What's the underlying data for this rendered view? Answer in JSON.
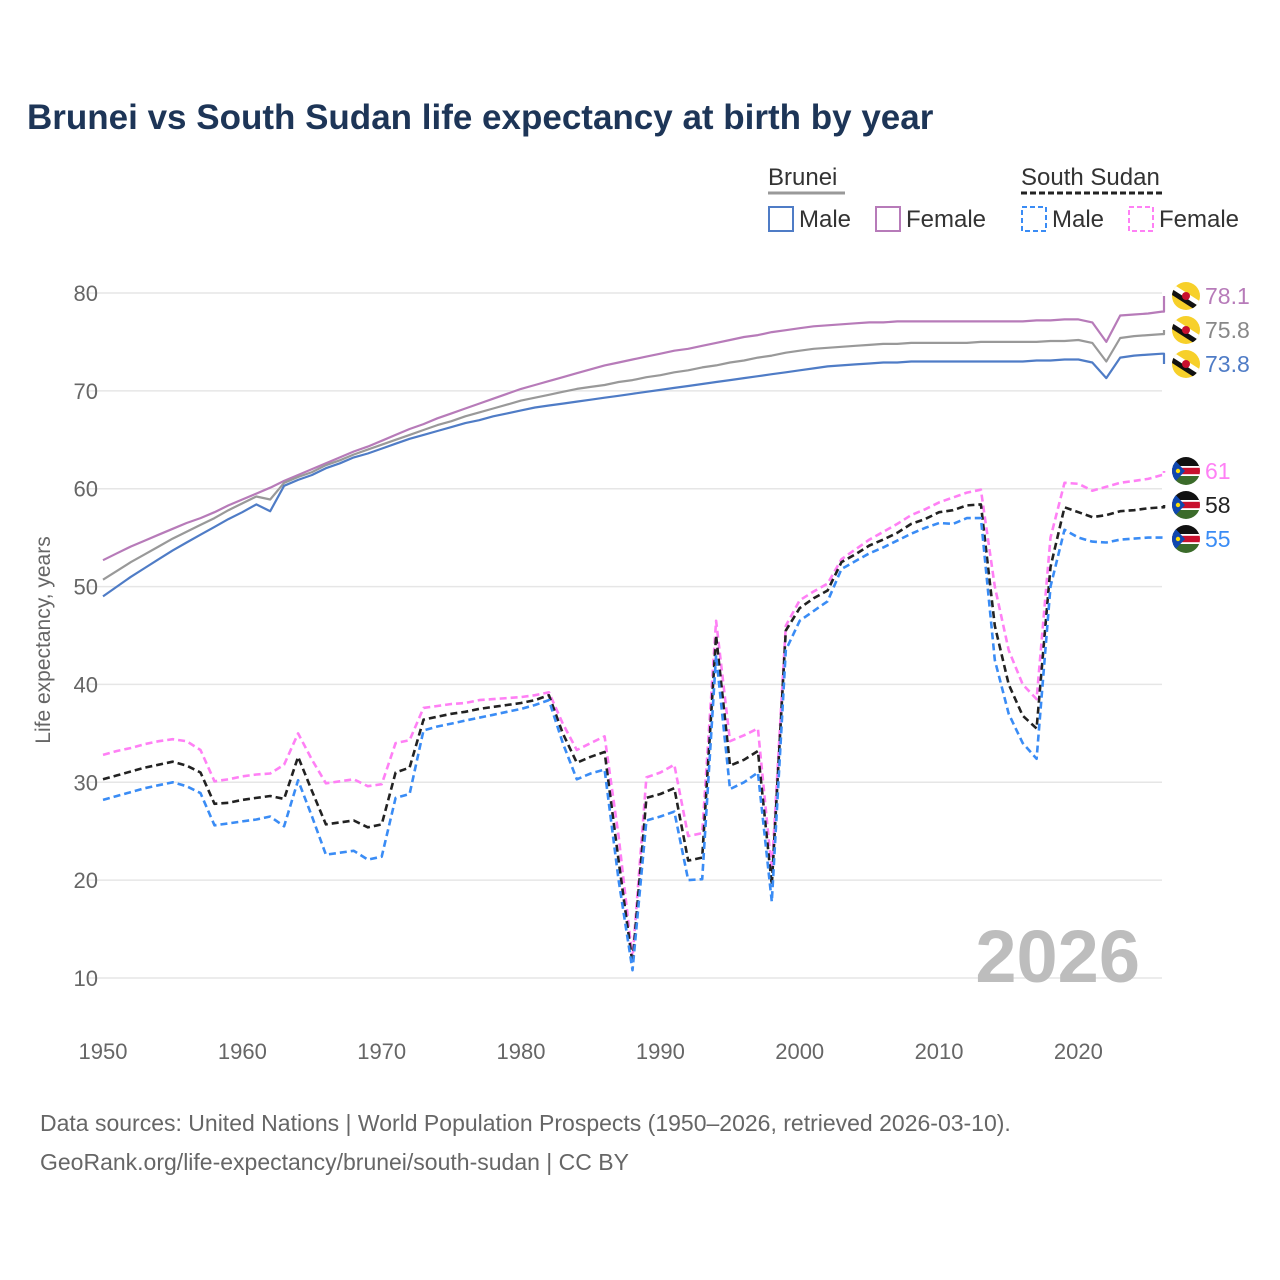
{
  "title": "Brunei vs South Sudan life expectancy at birth by year",
  "year_watermark": "2026",
  "legend": {
    "groups": [
      {
        "label": "Brunei",
        "items": [
          "Male",
          "Female"
        ]
      },
      {
        "label": "South Sudan",
        "items": [
          "Male",
          "Female"
        ]
      }
    ]
  },
  "footer": {
    "line1": "Data sources: United Nations | World Population Prospects (1950–2026, retrieved 2026-03-10).",
    "line2": "GeoRank.org/life-expectancy/brunei/south-sudan | CC BY"
  },
  "chart_data": {
    "type": "line",
    "title": "Brunei vs South Sudan life expectancy at birth by year",
    "xlabel": "",
    "ylabel": "Life expectancy, years",
    "xlim": [
      1950,
      2026
    ],
    "ylim": [
      10,
      80
    ],
    "x_start": 1950,
    "x_ticks": [
      "1950",
      "1960",
      "1970",
      "1980",
      "1990",
      "2000",
      "2010",
      "2020"
    ],
    "y_ticks": [
      "10",
      "20",
      "30",
      "40",
      "50",
      "60",
      "70",
      "80"
    ],
    "grid": true,
    "legend_position": "top-right",
    "series": [
      {
        "name": "Brunei Female",
        "country": "Brunei",
        "color": "#b77bb9",
        "dashed": false,
        "end_label": "78.1",
        "values": [
          52.7,
          53.4,
          54.1,
          54.7,
          55.3,
          55.9,
          56.5,
          57.0,
          57.6,
          58.3,
          58.9,
          59.5,
          60.1,
          60.8,
          61.4,
          62.0,
          62.6,
          63.2,
          63.8,
          64.3,
          64.9,
          65.5,
          66.1,
          66.6,
          67.2,
          67.7,
          68.2,
          68.7,
          69.2,
          69.7,
          70.2,
          70.6,
          71.0,
          71.4,
          71.8,
          72.2,
          72.6,
          72.9,
          73.2,
          73.5,
          73.8,
          74.1,
          74.3,
          74.6,
          74.9,
          75.2,
          75.5,
          75.7,
          76.0,
          76.2,
          76.4,
          76.6,
          76.7,
          76.8,
          76.9,
          77.0,
          77.0,
          77.1,
          77.1,
          77.1,
          77.1,
          77.1,
          77.1,
          77.1,
          77.1,
          77.1,
          77.1,
          77.2,
          77.2,
          77.3,
          77.3,
          77.0,
          75.0,
          77.7,
          77.8,
          77.9,
          78.1
        ]
      },
      {
        "name": "Brunei Total",
        "country": "Brunei",
        "color": "#999999",
        "dashed": false,
        "end_label": "75.8",
        "values": [
          50.7,
          51.6,
          52.5,
          53.3,
          54.1,
          54.9,
          55.6,
          56.3,
          57.0,
          57.8,
          58.5,
          59.2,
          58.9,
          60.6,
          61.2,
          61.7,
          62.4,
          62.9,
          63.5,
          64.0,
          64.5,
          65.0,
          65.5,
          66.0,
          66.5,
          66.9,
          67.4,
          67.8,
          68.2,
          68.6,
          69.0,
          69.3,
          69.6,
          69.9,
          70.2,
          70.4,
          70.6,
          70.9,
          71.1,
          71.4,
          71.6,
          71.9,
          72.1,
          72.4,
          72.6,
          72.9,
          73.1,
          73.4,
          73.6,
          73.9,
          74.1,
          74.3,
          74.4,
          74.5,
          74.6,
          74.7,
          74.8,
          74.8,
          74.9,
          74.9,
          74.9,
          74.9,
          74.9,
          75.0,
          75.0,
          75.0,
          75.0,
          75.0,
          75.1,
          75.1,
          75.2,
          74.9,
          73.0,
          75.4,
          75.6,
          75.7,
          75.8
        ]
      },
      {
        "name": "Brunei Male",
        "country": "Brunei",
        "color": "#4f7cc6",
        "dashed": false,
        "end_label": "73.8",
        "values": [
          49.0,
          50.0,
          51.0,
          51.9,
          52.8,
          53.7,
          54.5,
          55.3,
          56.1,
          56.9,
          57.6,
          58.4,
          57.7,
          60.3,
          60.9,
          61.4,
          62.1,
          62.6,
          63.2,
          63.6,
          64.1,
          64.6,
          65.1,
          65.5,
          65.9,
          66.3,
          66.7,
          67.0,
          67.4,
          67.7,
          68.0,
          68.3,
          68.5,
          68.7,
          68.9,
          69.1,
          69.3,
          69.5,
          69.7,
          69.9,
          70.1,
          70.3,
          70.5,
          70.7,
          70.9,
          71.1,
          71.3,
          71.5,
          71.7,
          71.9,
          72.1,
          72.3,
          72.5,
          72.6,
          72.7,
          72.8,
          72.9,
          72.9,
          73.0,
          73.0,
          73.0,
          73.0,
          73.0,
          73.0,
          73.0,
          73.0,
          73.0,
          73.1,
          73.1,
          73.2,
          73.2,
          72.9,
          71.3,
          73.4,
          73.6,
          73.7,
          73.8
        ]
      },
      {
        "name": "South Sudan Female",
        "country": "South Sudan",
        "color": "#ff80f5",
        "dashed": true,
        "end_label": "61",
        "values": [
          32.8,
          33.2,
          33.5,
          33.9,
          34.2,
          34.4,
          34.2,
          33.3,
          30.1,
          30.3,
          30.6,
          30.8,
          30.9,
          31.8,
          35.0,
          32.3,
          29.9,
          30.1,
          30.3,
          29.6,
          29.8,
          34.0,
          34.3,
          37.6,
          37.8,
          38.0,
          38.1,
          38.4,
          38.5,
          38.6,
          38.7,
          38.9,
          39.2,
          36.0,
          33.3,
          34.0,
          34.7,
          24.5,
          12.0,
          30.5,
          31.0,
          31.8,
          24.5,
          24.8,
          46.5,
          34.2,
          34.8,
          35.5,
          21.0,
          46.0,
          48.6,
          49.5,
          50.3,
          52.8,
          53.8,
          54.8,
          55.6,
          56.4,
          57.3,
          57.9,
          58.6,
          59.1,
          59.6,
          59.9,
          50.0,
          43.5,
          40.0,
          38.5,
          55.0,
          60.6,
          60.5,
          59.8,
          60.2,
          60.6,
          60.8,
          61.0,
          61.4
        ]
      },
      {
        "name": "South Sudan Total",
        "country": "South Sudan",
        "color": "#222222",
        "dashed": true,
        "end_label": "58",
        "values": [
          30.3,
          30.7,
          31.1,
          31.5,
          31.8,
          32.1,
          31.7,
          31.0,
          27.8,
          27.9,
          28.2,
          28.4,
          28.6,
          28.3,
          32.6,
          29.1,
          25.7,
          25.9,
          26.1,
          25.4,
          25.7,
          31.0,
          31.5,
          36.4,
          36.7,
          37.0,
          37.2,
          37.5,
          37.7,
          37.9,
          38.1,
          38.4,
          38.9,
          35.0,
          32.0,
          32.6,
          33.1,
          22.0,
          11.5,
          28.4,
          28.8,
          29.4,
          22.0,
          22.3,
          45.0,
          31.7,
          32.3,
          33.2,
          19.5,
          45.5,
          47.8,
          48.8,
          49.6,
          52.5,
          53.3,
          54.2,
          54.8,
          55.5,
          56.4,
          56.9,
          57.6,
          57.8,
          58.3,
          58.4,
          46.0,
          40.0,
          36.8,
          35.5,
          52.0,
          58.1,
          57.6,
          57.1,
          57.3,
          57.7,
          57.8,
          58.0,
          58.1
        ]
      },
      {
        "name": "South Sudan Male",
        "country": "South Sudan",
        "color": "#3a8cf5",
        "dashed": true,
        "end_label": "55",
        "values": [
          28.2,
          28.6,
          29.0,
          29.4,
          29.7,
          30.0,
          29.6,
          28.9,
          25.6,
          25.8,
          26.0,
          26.2,
          26.5,
          25.5,
          30.2,
          26.5,
          22.6,
          22.8,
          23.0,
          22.1,
          22.4,
          28.4,
          28.8,
          35.3,
          35.7,
          36.0,
          36.3,
          36.6,
          36.9,
          37.2,
          37.5,
          37.9,
          38.4,
          34.0,
          30.3,
          30.9,
          31.3,
          20.0,
          10.8,
          26.1,
          26.5,
          27.0,
          20.0,
          20.1,
          43.0,
          29.3,
          30.0,
          31.0,
          17.8,
          43.5,
          46.5,
          47.5,
          48.5,
          51.8,
          52.6,
          53.4,
          54.0,
          54.7,
          55.4,
          56.0,
          56.5,
          56.4,
          57.0,
          57.0,
          42.5,
          37.0,
          34.0,
          32.4,
          50.0,
          55.8,
          55.0,
          54.6,
          54.5,
          54.8,
          54.9,
          55.0,
          55.0
        ]
      }
    ]
  }
}
